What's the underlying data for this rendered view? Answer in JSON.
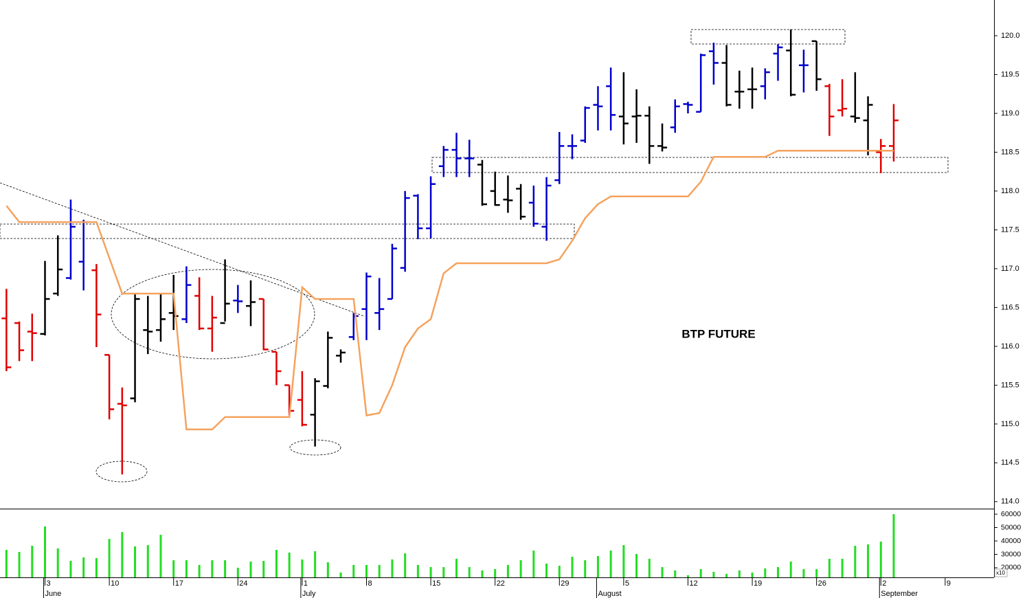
{
  "chart_data": [
    {
      "type": "ohlc",
      "annotation": "BTP FUTURE",
      "x": [
        -3,
        -2,
        -1,
        0,
        1,
        2,
        3,
        4,
        5,
        6,
        7,
        8,
        9,
        10,
        11,
        12,
        13,
        14,
        15,
        16,
        17,
        18,
        19,
        20,
        21,
        22,
        23,
        24,
        25,
        26,
        27,
        28,
        29,
        30,
        31,
        32,
        33,
        34,
        35,
        36,
        37,
        38,
        39,
        40,
        41,
        42,
        43,
        44,
        45,
        46,
        47,
        48,
        49,
        50,
        51,
        52,
        53,
        54,
        55,
        56,
        57,
        58,
        59,
        60,
        61,
        62,
        63,
        64,
        65,
        66
      ],
      "open": [
        116.36,
        116.3,
        116.19,
        116.16,
        116.68,
        116.88,
        117.09,
        116.98,
        115.89,
        115.26,
        115.33,
        116.21,
        116.21,
        116.43,
        116.35,
        116.65,
        116.23,
        116.3,
        116.59,
        116.52,
        116.61,
        115.93,
        115.5,
        115.31,
        115.12,
        115.49,
        115.88,
        116.12,
        116.48,
        116.43,
        116.61,
        117.01,
        117.94,
        117.52,
        118.32,
        118.53,
        118.42,
        118.34,
        118.0,
        117.89,
        118.03,
        117.85,
        117.54,
        118.14,
        118.58,
        118.65,
        119.11,
        119.35,
        118.96,
        118.96,
        118.97,
        118.58,
        118.82,
        119.12,
        119.02,
        119.8,
        119.65,
        119.28,
        119.31,
        119.35,
        119.77,
        119.81,
        119.62,
        119.93,
        119.35,
        119.04,
        118.96,
        118.91,
        118.5,
        118.58
      ],
      "high": [
        116.74,
        116.32,
        116.42,
        117.1,
        117.43,
        117.89,
        117.63,
        117.06,
        115.89,
        115.47,
        116.67,
        116.65,
        116.67,
        116.92,
        117.03,
        116.89,
        116.65,
        117.12,
        116.79,
        116.85,
        116.61,
        115.93,
        115.5,
        115.68,
        115.59,
        116.19,
        115.96,
        116.43,
        116.95,
        116.88,
        117.32,
        118.0,
        117.96,
        118.19,
        118.58,
        118.75,
        118.66,
        118.4,
        118.25,
        118.2,
        118.09,
        118.07,
        118.18,
        118.76,
        118.73,
        119.09,
        119.35,
        119.59,
        119.53,
        119.31,
        119.09,
        118.87,
        119.18,
        119.15,
        119.77,
        119.91,
        119.88,
        119.55,
        119.59,
        119.58,
        119.89,
        120.08,
        119.82,
        119.93,
        119.38,
        119.44,
        119.53,
        119.22,
        118.67,
        119.12
      ],
      "low": [
        115.68,
        115.81,
        115.81,
        116.14,
        116.65,
        116.86,
        116.72,
        115.99,
        115.06,
        114.35,
        115.28,
        115.9,
        116.06,
        116.21,
        116.3,
        116.21,
        115.93,
        116.32,
        116.43,
        116.26,
        115.95,
        115.5,
        115.11,
        114.97,
        114.71,
        115.46,
        115.79,
        116.08,
        116.08,
        116.21,
        116.61,
        116.96,
        117.38,
        117.39,
        118.18,
        118.18,
        118.18,
        117.81,
        117.81,
        117.72,
        117.63,
        117.54,
        117.36,
        118.09,
        118.41,
        118.62,
        118.78,
        118.78,
        118.6,
        118.62,
        118.35,
        118.51,
        118.75,
        119.0,
        119.02,
        119.37,
        119.09,
        119.06,
        119.06,
        119.18,
        119.42,
        119.22,
        119.27,
        119.29,
        118.71,
        118.96,
        118.88,
        118.46,
        118.23,
        118.38
      ],
      "close": [
        115.73,
        115.95,
        116.17,
        116.61,
        116.99,
        117.54,
        117.6,
        116.41,
        115.19,
        115.24,
        116.61,
        116.19,
        116.35,
        116.39,
        116.79,
        116.23,
        116.37,
        116.55,
        116.58,
        116.57,
        115.96,
        115.68,
        115.17,
        114.99,
        115.55,
        116.11,
        115.92,
        116.39,
        116.9,
        116.48,
        117.26,
        117.91,
        117.52,
        118.09,
        118.53,
        118.42,
        118.42,
        117.83,
        117.82,
        117.88,
        117.67,
        117.58,
        118.07,
        118.58,
        118.58,
        119.07,
        119.09,
        118.98,
        118.87,
        118.97,
        118.58,
        118.56,
        119.09,
        119.11,
        119.75,
        119.65,
        119.11,
        119.28,
        119.31,
        119.53,
        119.85,
        119.24,
        119.62,
        119.44,
        118.96,
        119.06,
        118.94,
        119.11,
        118.58,
        118.91
      ],
      "bar_colors": [
        "#e00000",
        "#e00000",
        "#e00000",
        "#000000",
        "#000000",
        "#0000cc",
        "#0000cc",
        "#e00000",
        "#e00000",
        "#e00000",
        "#000000",
        "#000000",
        "#000000",
        "#000000",
        "#0000cc",
        "#e00000",
        "#e00000",
        "#000000",
        "#0000cc",
        "#000000",
        "#e00000",
        "#e00000",
        "#e00000",
        "#e00000",
        "#000000",
        "#000000",
        "#000000",
        "#0000cc",
        "#0000cc",
        "#0000cc",
        "#0000cc",
        "#0000cc",
        "#0000cc",
        "#0000cc",
        "#0000cc",
        "#0000cc",
        "#0000cc",
        "#000000",
        "#000000",
        "#000000",
        "#000000",
        "#0000cc",
        "#0000cc",
        "#0000cc",
        "#0000cc",
        "#0000cc",
        "#0000cc",
        "#0000cc",
        "#000000",
        "#000000",
        "#000000",
        "#000000",
        "#0000cc",
        "#0000cc",
        "#0000cc",
        "#0000cc",
        "#000000",
        "#000000",
        "#000000",
        "#0000cc",
        "#0000cc",
        "#000000",
        "#0000cc",
        "#000000",
        "#e00000",
        "#e00000",
        "#000000",
        "#000000",
        "#e00000",
        "#e00000"
      ],
      "line": {
        "color": "#f5a25d",
        "values": [
          117.81,
          117.6,
          117.6,
          117.6,
          117.6,
          117.6,
          117.6,
          117.6,
          117.14,
          116.68,
          116.68,
          116.68,
          116.68,
          116.68,
          114.93,
          114.93,
          114.93,
          115.09,
          115.09,
          115.09,
          115.09,
          115.09,
          115.09,
          116.76,
          116.61,
          116.61,
          116.61,
          116.61,
          115.11,
          115.14,
          115.5,
          115.99,
          116.23,
          116.35,
          116.94,
          117.07,
          117.07,
          117.07,
          117.07,
          117.07,
          117.07,
          117.07,
          117.07,
          117.12,
          117.36,
          117.65,
          117.83,
          117.93,
          117.93,
          117.93,
          117.93,
          117.93,
          117.93,
          117.93,
          118.12,
          118.44,
          118.44,
          118.44,
          118.44,
          118.44,
          118.52,
          118.52,
          118.52,
          118.52,
          118.52,
          118.52,
          118.52,
          118.52,
          118.52,
          118.52
        ]
      },
      "xlim": [
        -3.5,
        73.8
      ],
      "ylim": [
        113.91,
        120.46
      ],
      "yticks": [
        {
          "value": 114,
          "label": "114.0"
        },
        {
          "value": 114.5,
          "label": "114.5"
        },
        {
          "value": 115,
          "label": "115.0"
        },
        {
          "value": 115.5,
          "label": "115.5"
        },
        {
          "value": 116,
          "label": "116.0"
        },
        {
          "value": 116.5,
          "label": "116.5"
        },
        {
          "value": 117,
          "label": "117.0"
        },
        {
          "value": 117.5,
          "label": "117.5"
        },
        {
          "value": 118,
          "label": "118.0"
        },
        {
          "value": 118.5,
          "label": "118.5"
        },
        {
          "value": 119,
          "label": "119.0"
        },
        {
          "value": 119.5,
          "label": "119.5"
        },
        {
          "value": 120,
          "label": "120.0"
        }
      ]
    },
    {
      "type": "bar",
      "color": "#22dd22",
      "unit_label": "x10",
      "x": [
        -3,
        -2,
        -1,
        0,
        1,
        2,
        3,
        4,
        5,
        6,
        7,
        8,
        9,
        10,
        11,
        12,
        13,
        14,
        15,
        16,
        17,
        18,
        19,
        20,
        21,
        22,
        23,
        24,
        25,
        26,
        27,
        28,
        29,
        30,
        31,
        32,
        33,
        34,
        35,
        36,
        37,
        38,
        39,
        40,
        41,
        42,
        43,
        44,
        45,
        46,
        47,
        48,
        49,
        50,
        51,
        52,
        53,
        54,
        55,
        56,
        57,
        58,
        59,
        60,
        61,
        62,
        63,
        64,
        65,
        66
      ],
      "values": [
        33300,
        31800,
        36400,
        50800,
        34400,
        25100,
        27700,
        27200,
        41500,
        46700,
        35900,
        36900,
        44600,
        25600,
        25600,
        22100,
        25600,
        25600,
        20000,
        24600,
        25100,
        33300,
        31300,
        26200,
        32300,
        24100,
        16400,
        22100,
        22100,
        22100,
        26200,
        30800,
        22100,
        20500,
        20500,
        26700,
        20500,
        18000,
        19000,
        22100,
        25600,
        32800,
        23100,
        21500,
        28200,
        25600,
        28700,
        32800,
        36900,
        30300,
        26700,
        20500,
        18000,
        14400,
        19000,
        16900,
        15400,
        18000,
        16400,
        19500,
        20500,
        24600,
        19000,
        19000,
        26700,
        26700,
        36400,
        37400,
        39500,
        60000
      ],
      "xlim": [
        -3.5,
        73.8
      ],
      "ylim": [
        12800,
        63600
      ],
      "yticks": [
        20000,
        30000,
        40000,
        50000,
        60000
      ],
      "xticks": [
        {
          "value": 0,
          "label": "3"
        },
        {
          "value": 5,
          "label": "10"
        },
        {
          "value": 10,
          "label": "17"
        },
        {
          "value": 15,
          "label": "24"
        },
        {
          "value": 20,
          "label": "1"
        },
        {
          "value": 25,
          "label": "8"
        },
        {
          "value": 30,
          "label": "15"
        },
        {
          "value": 35,
          "label": "22"
        },
        {
          "value": 40,
          "label": "29"
        },
        {
          "value": 45,
          "label": "5"
        },
        {
          "value": 50,
          "label": "12"
        },
        {
          "value": 55,
          "label": "19"
        },
        {
          "value": 60,
          "label": "26"
        },
        {
          "value": 65,
          "label": "2"
        },
        {
          "value": 70,
          "label": "9"
        }
      ],
      "month_ticks": [
        {
          "value": 0,
          "label": "June"
        },
        {
          "value": 20,
          "label": "July"
        },
        {
          "value": 43,
          "label": "August"
        },
        {
          "value": 65,
          "label": "September"
        }
      ]
    }
  ]
}
